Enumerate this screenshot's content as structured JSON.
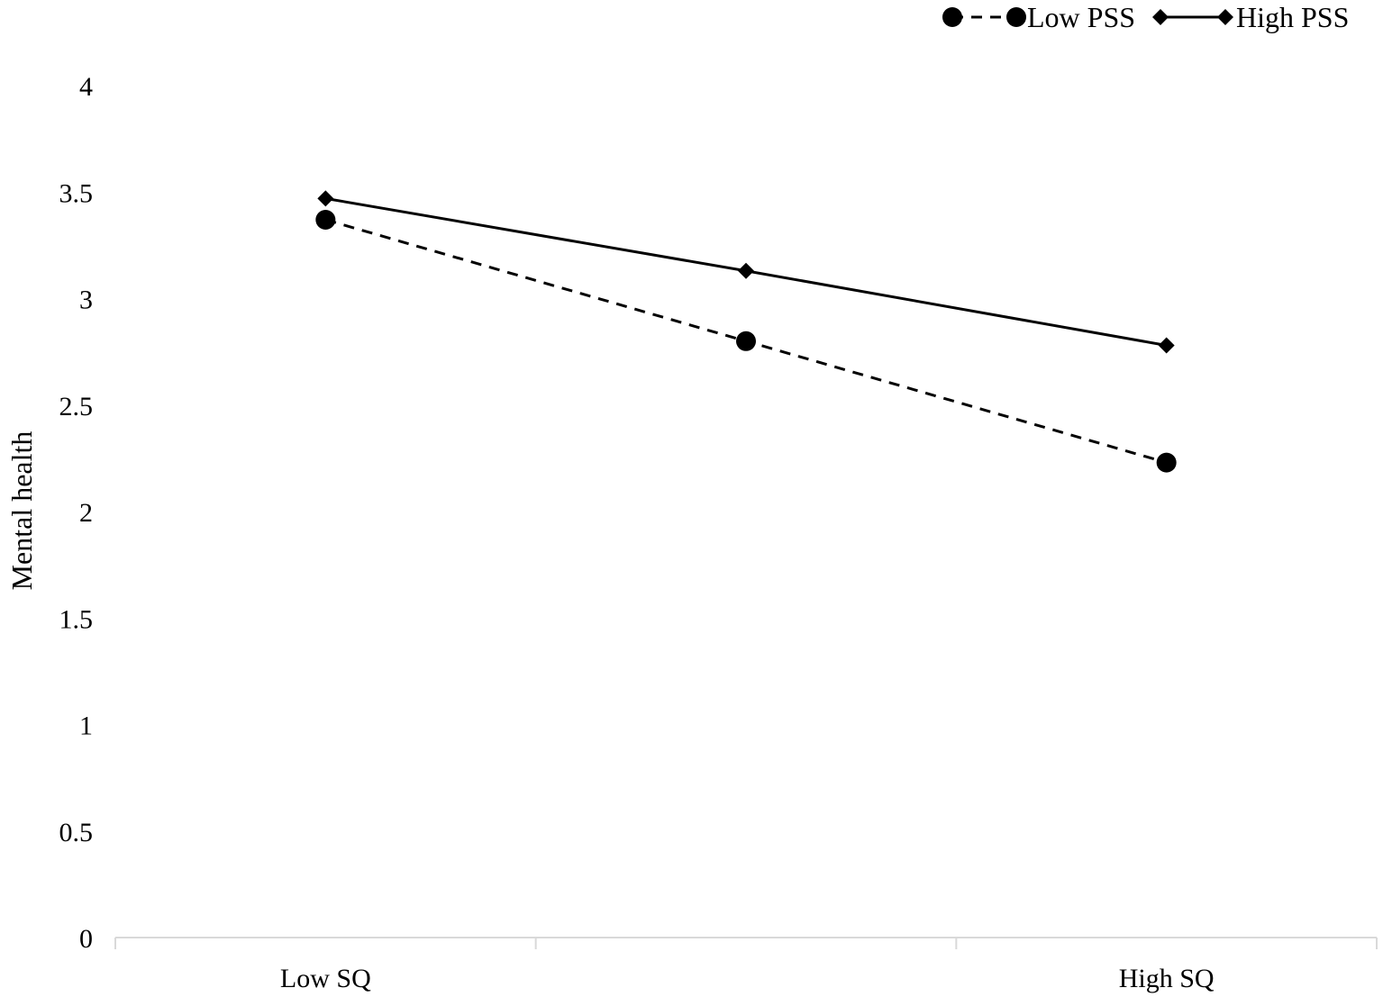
{
  "chart_data": {
    "type": "line",
    "title": "",
    "xlabel": "",
    "ylabel": "Mental health",
    "categories": [
      "Low SQ",
      "",
      "High SQ"
    ],
    "ylim": [
      0,
      4
    ],
    "yticks": [
      "0",
      "0.5",
      "1",
      "1.5",
      "2",
      "2.5",
      "3",
      "3.5",
      "4"
    ],
    "grid": false,
    "legend_position": "top-right",
    "series": [
      {
        "name": "Low PSS",
        "values": [
          3.37,
          2.8,
          2.23
        ],
        "marker": "circle",
        "line_style": "dashed",
        "color": "#000000"
      },
      {
        "name": "High PSS",
        "values": [
          3.47,
          3.13,
          2.78
        ],
        "marker": "diamond",
        "line_style": "solid",
        "color": "#000000"
      }
    ]
  }
}
